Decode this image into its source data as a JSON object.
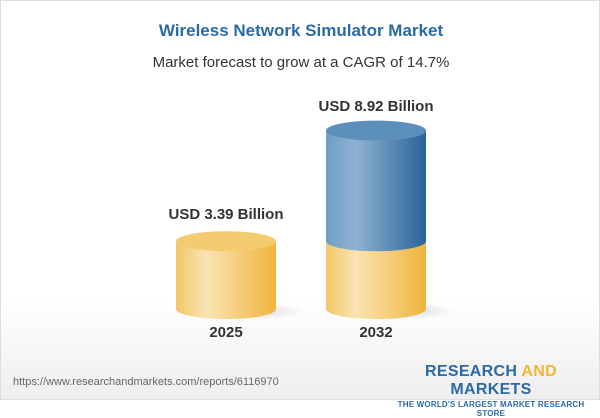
{
  "title": "Wireless Network Simulator Market",
  "subtitle": "Market forecast to grow at a CAGR of 14.7%",
  "chart_data": {
    "type": "bar",
    "style": "3d-cylinder",
    "categories": [
      "2025",
      "2032"
    ],
    "values": [
      3.39,
      8.92
    ],
    "data_labels": [
      "USD 3.39 Billion",
      "USD 8.92 Billion"
    ],
    "unit": "USD Billion",
    "colors": {
      "base": "#f2c35a",
      "growth": "#3f78ac"
    },
    "grid": false
  },
  "footer": {
    "url": "https://www.researchandmarkets.com/reports/6116970",
    "logo_part1": "RESEARCH ",
    "logo_part2": "AND",
    "logo_part3": " MARKETS",
    "logo_tagline": "THE WORLD'S LARGEST MARKET RESEARCH STORE"
  }
}
